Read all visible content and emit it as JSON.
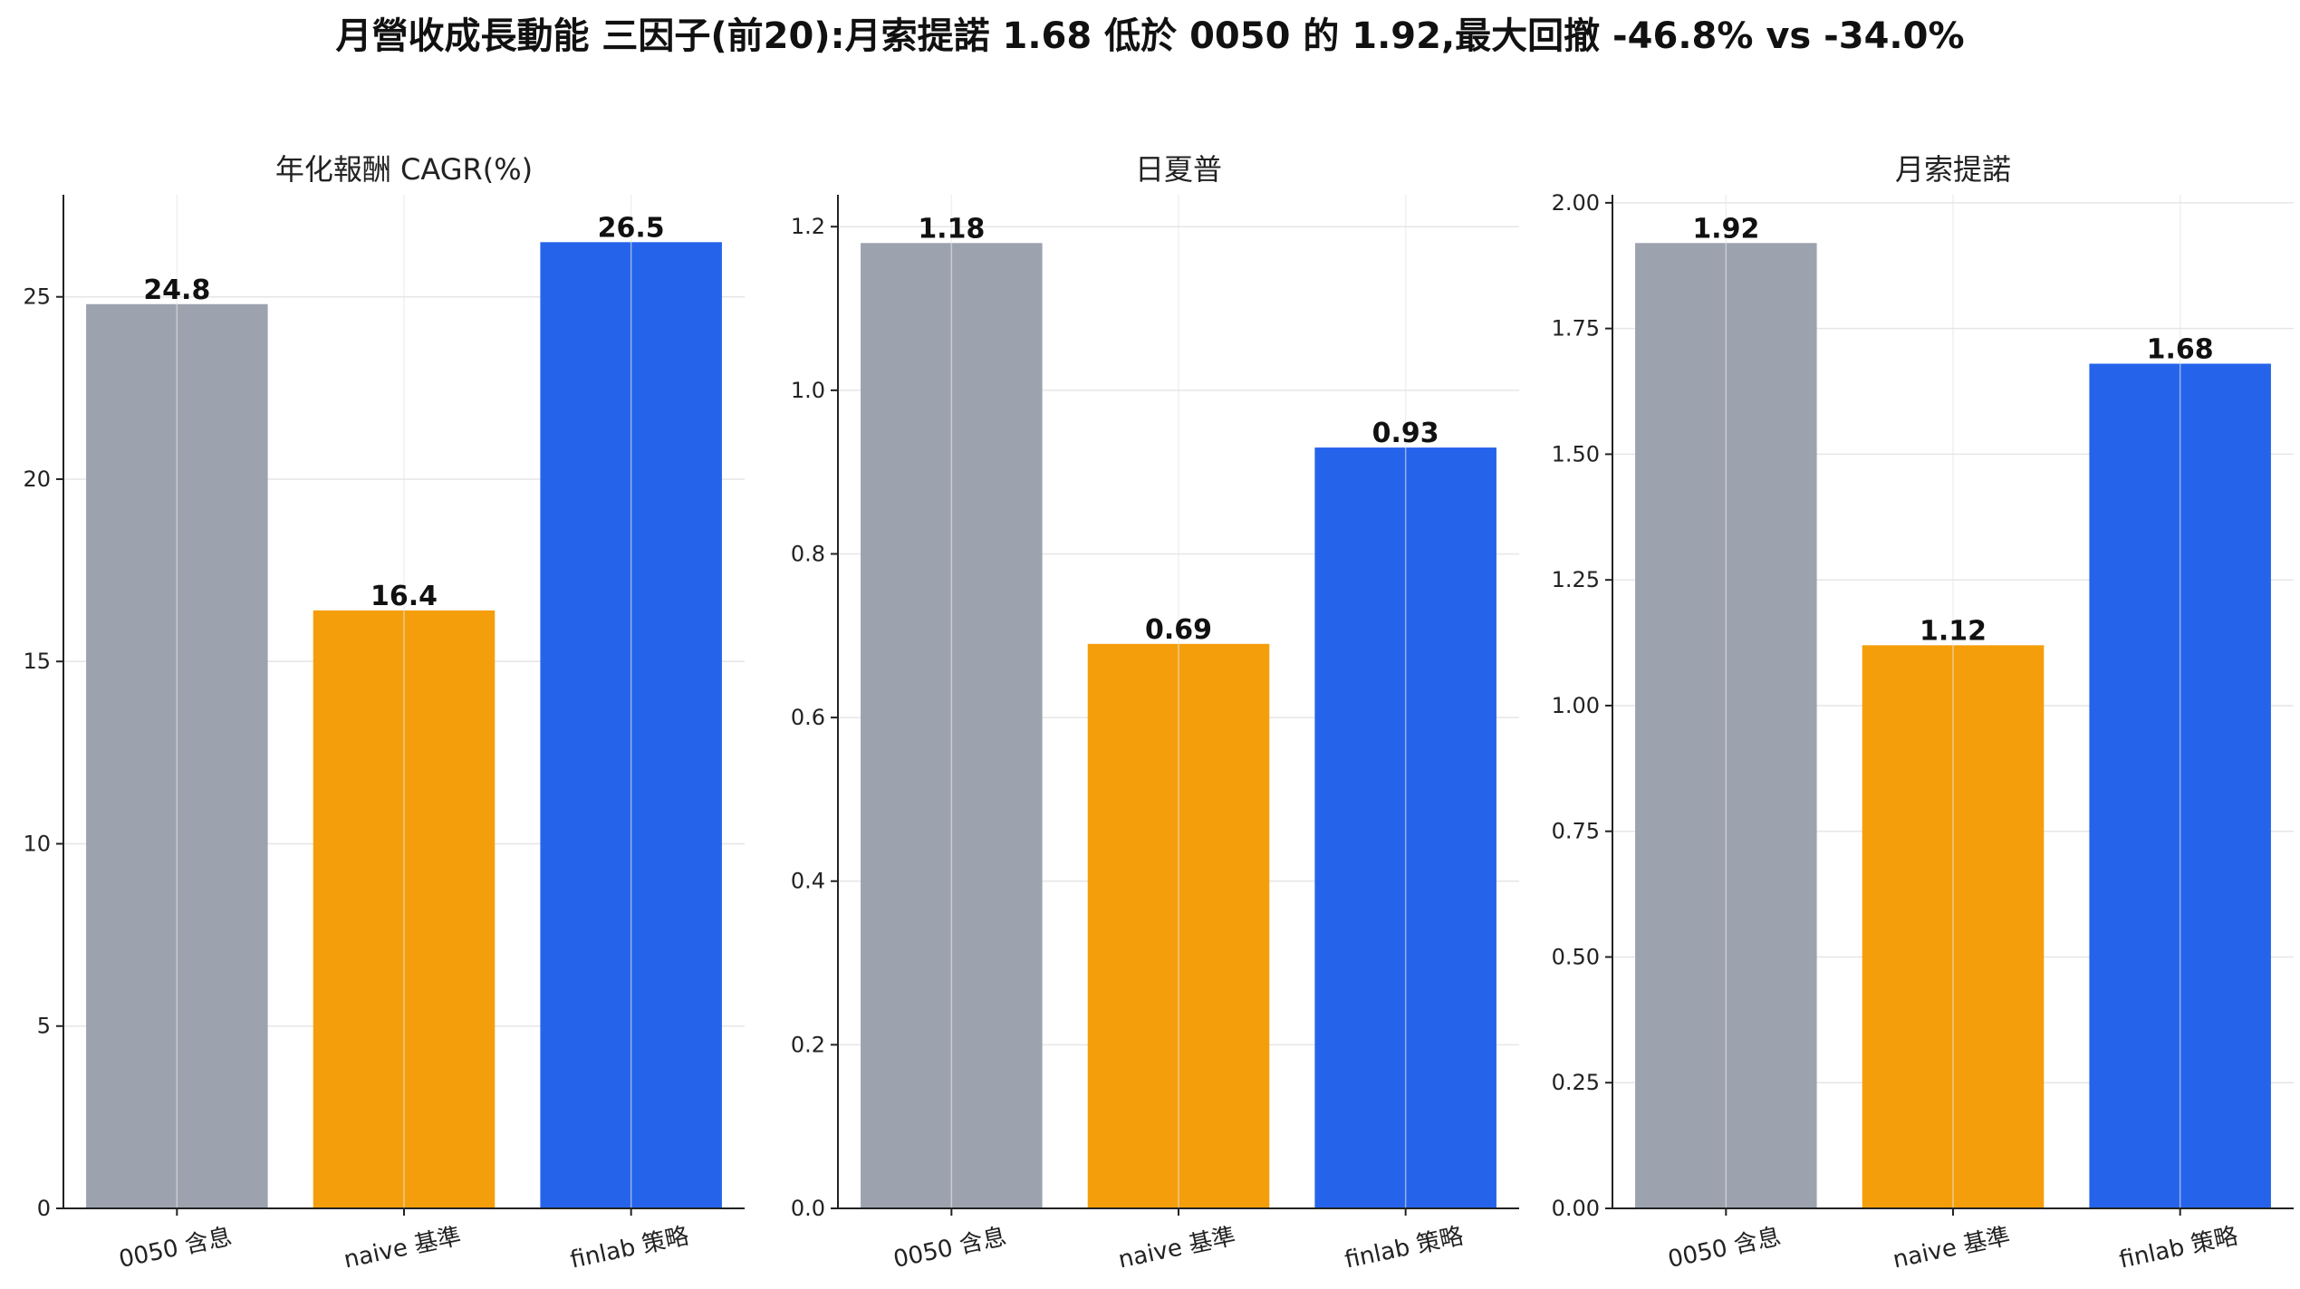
{
  "title": "月營收成長動能 三因子(前20):月索提諾 1.68 低於 0050 的 1.92,最大回撤 -46.8% vs -34.0%",
  "colors": {
    "series": [
      "#9ca3af",
      "#f59e0b",
      "#2563eb"
    ],
    "axis": "#222222",
    "grid": "#e6e6e6"
  },
  "chart_data": [
    {
      "type": "bar",
      "title": "年化報酬 CAGR(%)",
      "categories": [
        "0050 含息",
        "naive 基準",
        "finlab 策略"
      ],
      "values": [
        24.8,
        16.4,
        26.5
      ],
      "value_labels": [
        "24.8",
        "16.4",
        "26.5"
      ],
      "ylim": [
        0,
        27.8
      ],
      "yticks": [
        0,
        5,
        10,
        15,
        20,
        25
      ],
      "ytick_labels": [
        "0",
        "5",
        "10",
        "15",
        "20",
        "25"
      ],
      "grid": true,
      "xlabel": "",
      "ylabel": ""
    },
    {
      "type": "bar",
      "title": "日夏普",
      "categories": [
        "0050 含息",
        "naive 基準",
        "finlab 策略"
      ],
      "values": [
        1.18,
        0.69,
        0.93
      ],
      "value_labels": [
        "1.18",
        "0.69",
        "0.93"
      ],
      "ylim": [
        0,
        1.239
      ],
      "yticks": [
        0,
        0.2,
        0.4,
        0.6,
        0.8,
        1.0,
        1.2
      ],
      "ytick_labels": [
        "0.0",
        "0.2",
        "0.4",
        "0.6",
        "0.8",
        "1.0",
        "1.2"
      ],
      "grid": true,
      "xlabel": "",
      "ylabel": ""
    },
    {
      "type": "bar",
      "title": "月索提諾",
      "categories": [
        "0050 含息",
        "naive 基準",
        "finlab 策略"
      ],
      "values": [
        1.92,
        1.12,
        1.68
      ],
      "value_labels": [
        "1.92",
        "1.12",
        "1.68"
      ],
      "ylim": [
        0,
        2.016
      ],
      "yticks": [
        0,
        0.25,
        0.5,
        0.75,
        1.0,
        1.25,
        1.5,
        1.75,
        2.0
      ],
      "ytick_labels": [
        "0.00",
        "0.25",
        "0.50",
        "0.75",
        "1.00",
        "1.25",
        "1.50",
        "1.75",
        "2.00"
      ],
      "grid": true,
      "xlabel": "",
      "ylabel": ""
    }
  ]
}
